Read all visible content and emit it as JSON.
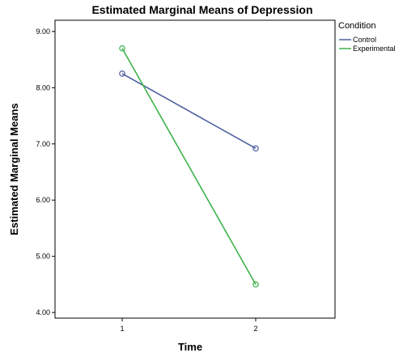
{
  "chart_data": {
    "type": "line",
    "title": "Estimated Marginal Means of Depression",
    "xlabel": "Time",
    "ylabel": "Estimated Marginal Means",
    "categories": [
      "1",
      "2"
    ],
    "ylim": [
      3.9,
      9.2
    ],
    "yticks": [
      "4.00",
      "5.00",
      "6.00",
      "7.00",
      "8.00",
      "9.00"
    ],
    "grid": false,
    "legend_title": "Condition",
    "legend_position": "top-right",
    "series": [
      {
        "name": "Control",
        "color": "#4f5fa0",
        "values": [
          8.25,
          6.92
        ]
      },
      {
        "name": "Experimental",
        "color": "#3cb34a",
        "values": [
          8.7,
          4.5
        ]
      }
    ]
  }
}
